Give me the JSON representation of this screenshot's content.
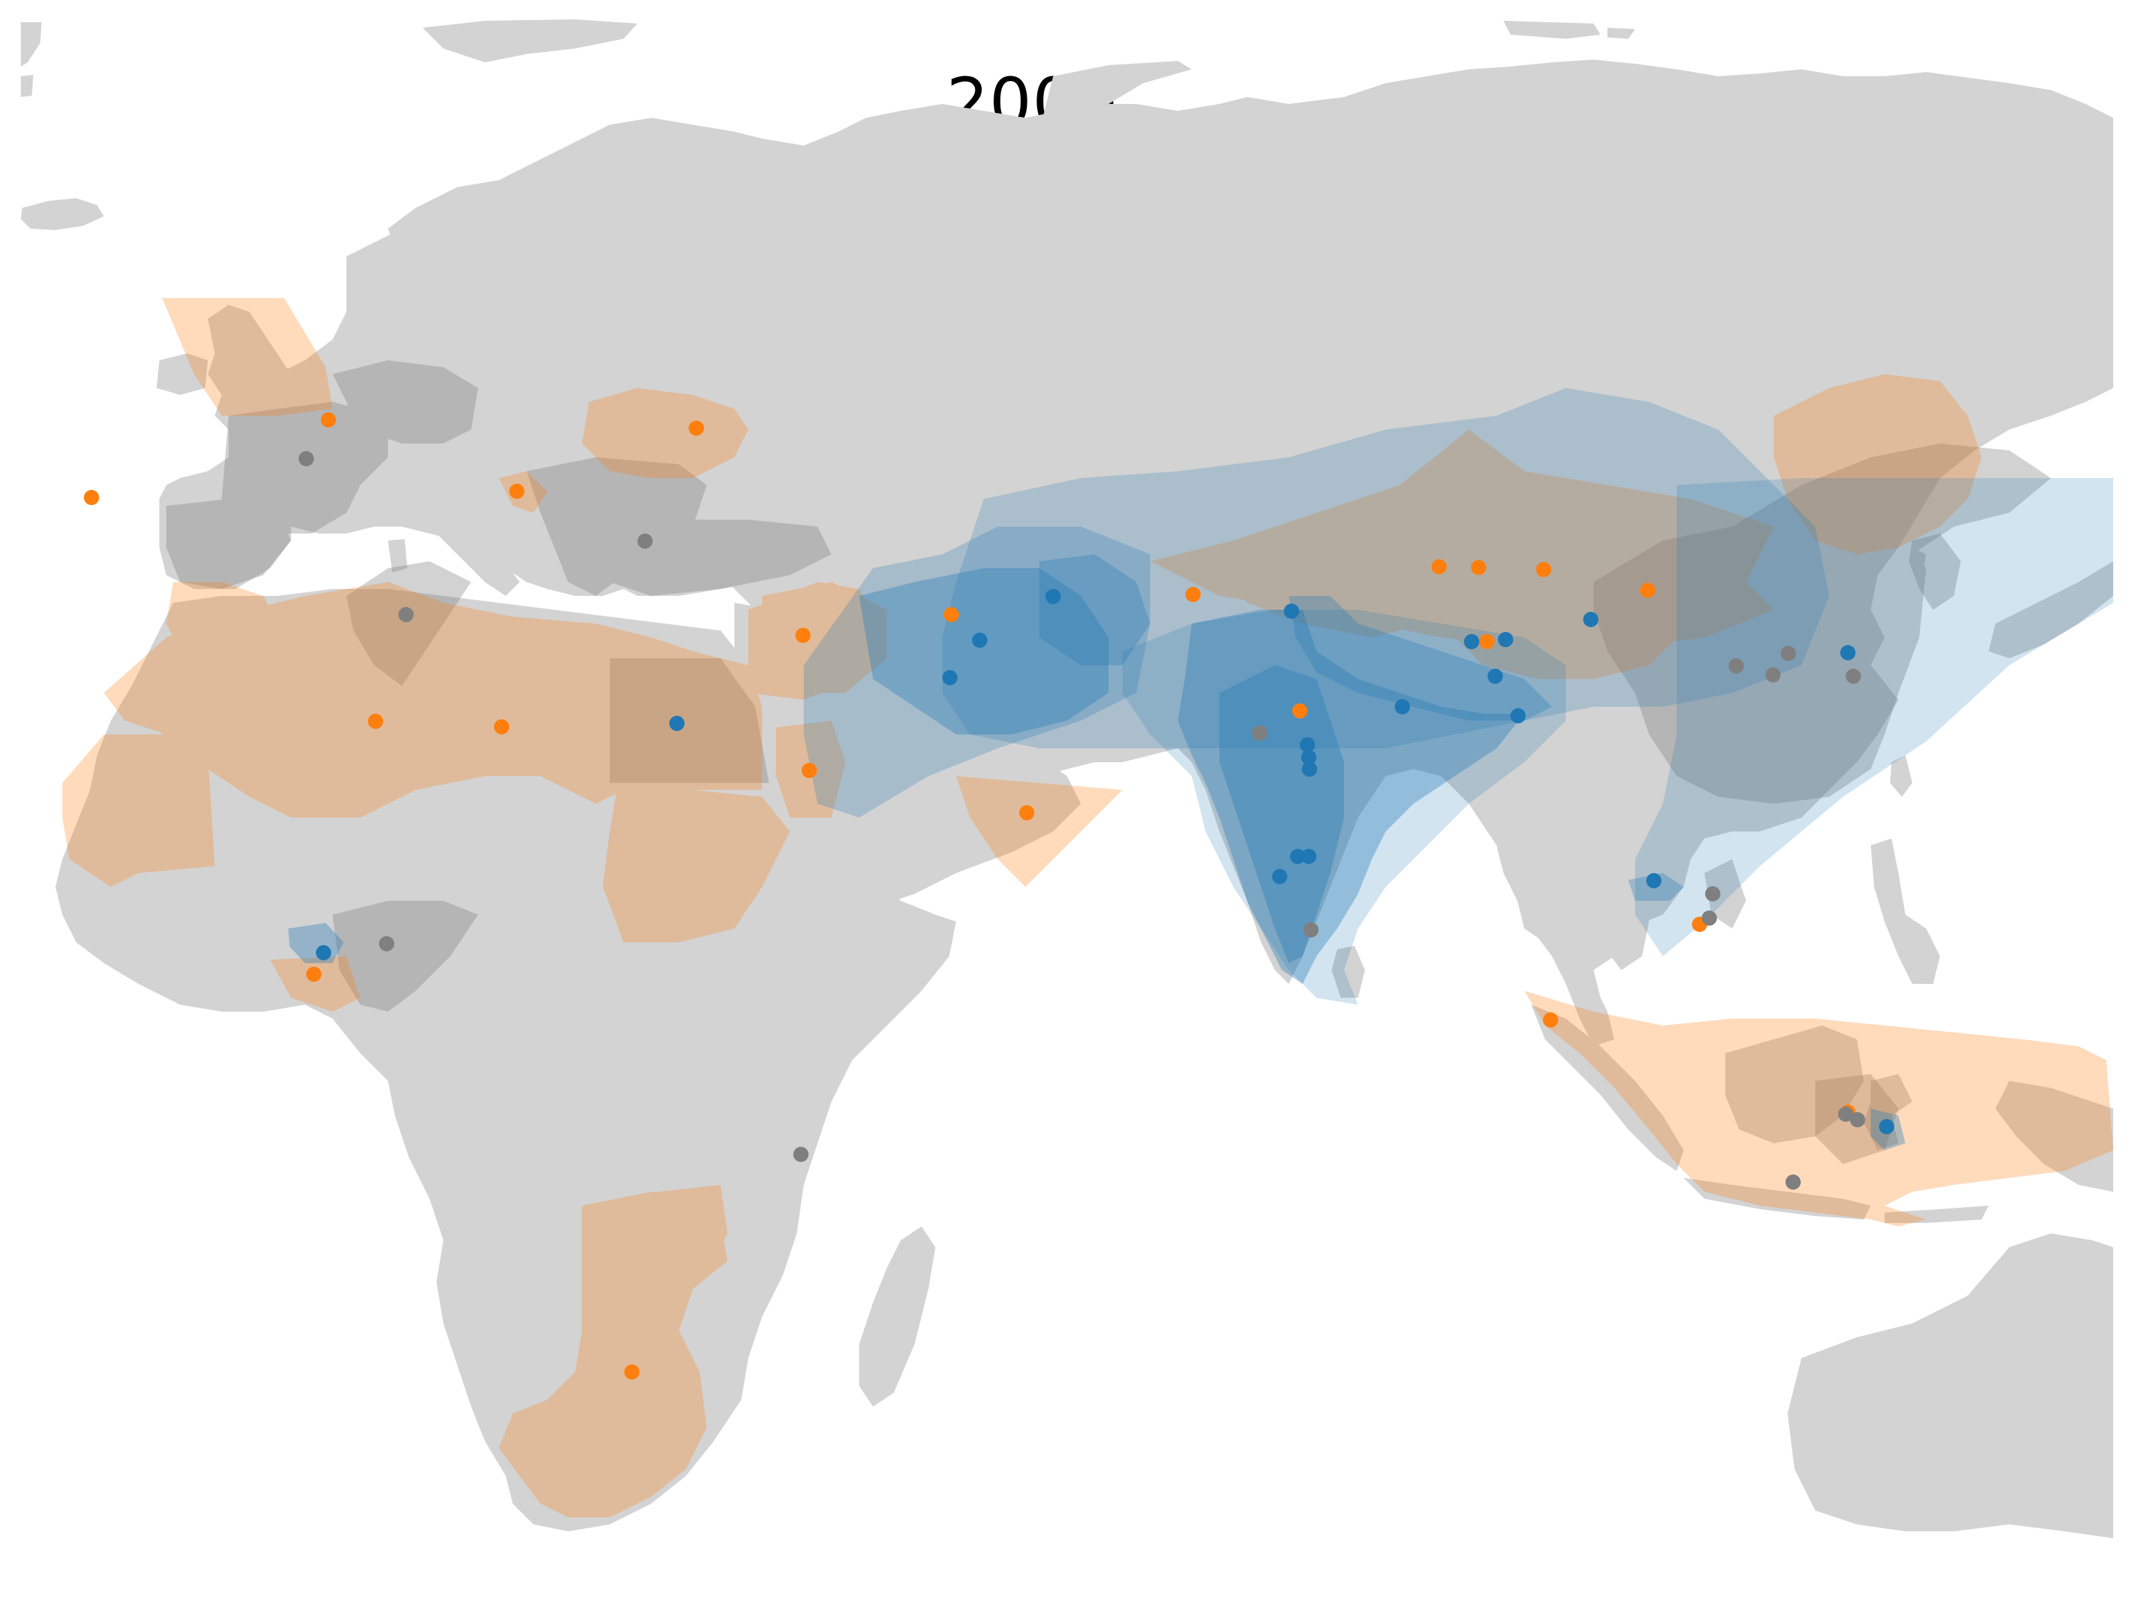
{
  "title": "2000",
  "colors": {
    "land": "#d3d3d3",
    "blue": "#1f77b4",
    "orange": "#ff7f0e",
    "gray": "#7f7f7f",
    "background": "#ffffff"
  },
  "marker_groups": {
    "blue": "blue",
    "orange": "orange",
    "gray": "gray"
  }
}
